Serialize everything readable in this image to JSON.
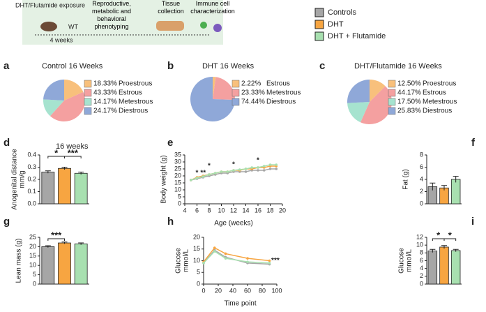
{
  "schematic": {
    "steps": [
      "DHT/Flutamide exposure",
      "Reproductive, metabolic and behavioral phenotyping",
      "Tissue collection",
      "Immune cell characterization"
    ],
    "mouse_label": "WT",
    "duration": "4 weeks"
  },
  "legend": [
    {
      "name": "Controls",
      "color": "#a6a6a6"
    },
    {
      "name": "DHT",
      "color": "#f7a541"
    },
    {
      "name": "DHT + Flutamide",
      "color": "#a8e0b0"
    }
  ],
  "chart_data": [
    {
      "type": "pie",
      "panel": "a",
      "title": "Control 16 Weeks",
      "categories": [
        "Proestrous",
        "Estrous",
        "Metestrous",
        "Diestrous"
      ],
      "values": [
        18.33,
        43.33,
        14.17,
        24.17
      ],
      "value_labels": [
        "18.33%",
        "43.33%",
        "14.17%",
        "24.17%"
      ],
      "colors": [
        "#f8c07c",
        "#f4a0a0",
        "#a6e3cf",
        "#8fa8d8"
      ]
    },
    {
      "type": "pie",
      "panel": "b",
      "title": "DHT 16 Weeks",
      "categories": [
        "Estrous",
        "Metestrous",
        "Diestrous"
      ],
      "values": [
        2.22,
        23.33,
        74.44
      ],
      "value_labels": [
        "2.22%",
        "23.33%",
        "74.44%"
      ],
      "colors": [
        "#f8c07c",
        "#f4a0a0",
        "#8fa8d8"
      ]
    },
    {
      "type": "pie",
      "panel": "c",
      "title": "DHT/Flutamide 16 Weeks",
      "categories": [
        "Proestrous",
        "Estrous",
        "Metestrous",
        "Diestrous"
      ],
      "values": [
        12.5,
        44.17,
        17.5,
        25.83
      ],
      "value_labels": [
        "12.50%",
        "44.17%",
        "17.50%",
        "25.83%"
      ],
      "colors": [
        "#f8c07c",
        "#f4a0a0",
        "#a6e3cf",
        "#8fa8d8"
      ]
    },
    {
      "type": "bar",
      "panel": "d",
      "title": "16 weeks",
      "ylabel": [
        "Anogenital distance",
        "mm/g"
      ],
      "values": [
        0.26,
        0.29,
        0.25
      ],
      "errors": [
        0.01,
        0.01,
        0.01
      ],
      "colors": [
        "#a6a6a6",
        "#f7a541",
        "#a8e0b0"
      ],
      "ylim": [
        0,
        0.4
      ],
      "yticks": [
        {
          "value": 0,
          "label": "0.0"
        },
        0.1,
        0.2,
        0.3,
        0.4
      ],
      "annotations": [
        "*",
        "***"
      ]
    },
    {
      "type": "line",
      "panel": "e",
      "ylabel": [
        "Body weight (g)"
      ],
      "xlabel": "Age (weeks)",
      "x": [
        5,
        6,
        7,
        8,
        9,
        10,
        11,
        12,
        13,
        14,
        15,
        16,
        17,
        18,
        19
      ],
      "series": [
        {
          "name": "Controls",
          "color": "#a6a6a6",
          "values": [
            17,
            18,
            19,
            20,
            21,
            22,
            22,
            23,
            23,
            23,
            24,
            24,
            24,
            25,
            25
          ]
        },
        {
          "name": "DHT",
          "color": "#f7a541",
          "values": [
            17,
            19,
            20,
            21,
            22,
            23,
            23,
            24,
            24,
            25,
            25,
            26,
            26,
            27,
            27
          ]
        },
        {
          "name": "DHT + Flutamide",
          "color": "#a8e0b0",
          "values": [
            17,
            18.5,
            19.5,
            21,
            22,
            23,
            23,
            24,
            24.5,
            25,
            26,
            26,
            27,
            28,
            28
          ]
        }
      ],
      "xlim": [
        4,
        20
      ],
      "xticks": [
        4,
        6,
        8,
        10,
        12,
        14,
        16,
        18,
        20
      ],
      "ylim": [
        0,
        35
      ],
      "yticks": [
        0,
        5,
        10,
        15,
        20,
        25,
        30,
        35
      ],
      "annotations": [
        "*",
        "**",
        "*",
        "*",
        "*"
      ]
    },
    {
      "type": "bar",
      "panel": "f",
      "ylabel": [
        "Fat (g)"
      ],
      "values": [
        2.8,
        2.6,
        4.0
      ],
      "errors": [
        0.6,
        0.4,
        0.5
      ],
      "colors": [
        "#a6a6a6",
        "#f7a541",
        "#a8e0b0"
      ],
      "ylim": [
        0,
        8
      ],
      "yticks": [
        0,
        2,
        4,
        6,
        8
      ],
      "annotations": []
    },
    {
      "type": "bar",
      "panel": "g",
      "ylabel": [
        "Lean mass (g)"
      ],
      "values": [
        20,
        22,
        21.5
      ],
      "errors": [
        0.5,
        0.5,
        0.5
      ],
      "colors": [
        "#a6a6a6",
        "#f7a541",
        "#a8e0b0"
      ],
      "ylim": [
        0,
        25
      ],
      "yticks": [
        0,
        5,
        10,
        15,
        20,
        25
      ],
      "annotations": [
        "***"
      ]
    },
    {
      "type": "line",
      "panel": "h",
      "ylabel": [
        "Glucose",
        "mmol/L"
      ],
      "xlabel": "Time point",
      "x": [
        0,
        15,
        30,
        60,
        90
      ],
      "series": [
        {
          "name": "Controls",
          "color": "#a6a6a6",
          "values": [
            9,
            14.5,
            11.5,
            9,
            8.5
          ]
        },
        {
          "name": "DHT",
          "color": "#f7a541",
          "values": [
            9.5,
            15.5,
            13,
            11,
            10
          ]
        },
        {
          "name": "DHT + Flutamide",
          "color": "#a8e0b0",
          "values": [
            9,
            14,
            11,
            9.5,
            9
          ]
        }
      ],
      "xlim": [
        0,
        100
      ],
      "xticks": [
        0,
        20,
        40,
        60,
        80,
        100
      ],
      "ylim": [
        0,
        20
      ],
      "yticks": [
        0,
        5,
        10,
        15,
        20
      ],
      "annotations": [
        "***"
      ]
    },
    {
      "type": "bar",
      "panel": "i",
      "ylabel": [
        "Glucose",
        "mmol/L"
      ],
      "values": [
        8.5,
        9.5,
        8.6
      ],
      "errors": [
        0.4,
        0.4,
        0.3
      ],
      "colors": [
        "#a6a6a6",
        "#f7a541",
        "#a8e0b0"
      ],
      "ylim": [
        0,
        12
      ],
      "yticks": [
        0,
        2,
        4,
        6,
        8,
        10,
        12
      ],
      "annotations": [
        "*",
        "*"
      ]
    }
  ]
}
